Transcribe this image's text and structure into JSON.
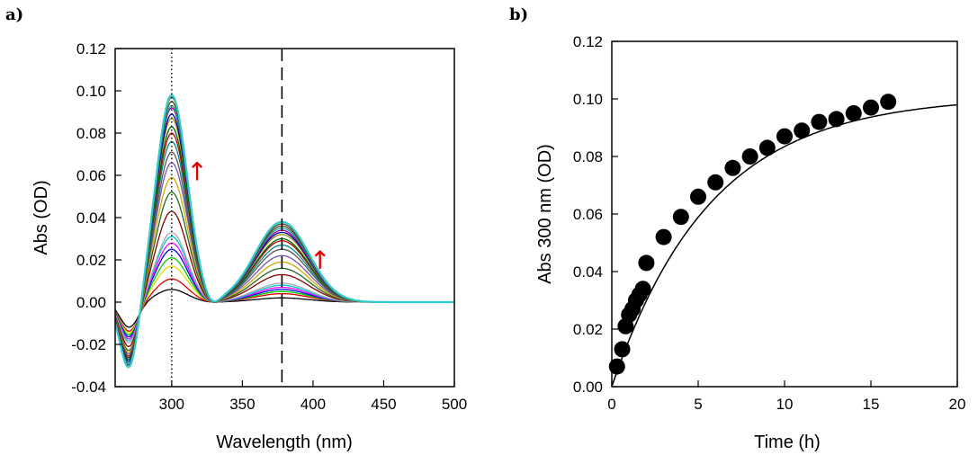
{
  "chart_data": [
    {
      "type": "line",
      "panel_label": "a)",
      "xlabel": "Wavelength (nm)",
      "ylabel": "Abs (OD)",
      "xlim": [
        260,
        500
      ],
      "ylim": [
        -0.04,
        0.12
      ],
      "xticks": [
        "300",
        "350",
        "400",
        "450",
        "500"
      ],
      "yticks": [
        "-0.04",
        "-0.02",
        "0.00",
        "0.02",
        "0.04",
        "0.06",
        "0.08",
        "0.10",
        "0.12"
      ],
      "grid": false,
      "reference_lines": [
        {
          "x": 300,
          "style": "dotted"
        },
        {
          "x": 378,
          "style": "dashed"
        }
      ],
      "annotations": [
        {
          "text": "↑",
          "x": 318,
          "y": 0.062,
          "color": "#e00000"
        },
        {
          "text": "↑",
          "x": 405,
          "y": 0.02,
          "color": "#e00000"
        }
      ],
      "series_colors": [
        "#000000",
        "#dd0000",
        "#dddd00",
        "#00cc00",
        "#0000ee",
        "#ff00ff",
        "#00cccc",
        "#aaaaaa",
        "#880000",
        "#226622",
        "#ccaa00",
        "#7755aa",
        "#555555",
        "#008888",
        "#bb0000",
        "#006600",
        "#999900",
        "#0000aa",
        "#990099",
        "#00aaaa",
        "#664400",
        "#444444",
        "#33cccc"
      ],
      "series_peak300": [
        0.006,
        0.011,
        0.017,
        0.021,
        0.025,
        0.028,
        0.031,
        0.033,
        0.043,
        0.052,
        0.059,
        0.066,
        0.071,
        0.076,
        0.08,
        0.083,
        0.087,
        0.089,
        0.092,
        0.093,
        0.095,
        0.097,
        0.098
      ],
      "series_peak378": [
        0.002,
        0.004,
        0.005,
        0.005,
        0.006,
        0.007,
        0.008,
        0.009,
        0.013,
        0.016,
        0.019,
        0.022,
        0.025,
        0.027,
        0.029,
        0.03,
        0.032,
        0.033,
        0.034,
        0.035,
        0.036,
        0.037,
        0.038
      ],
      "series_min270": [
        -0.012,
        -0.014,
        -0.015,
        -0.016,
        -0.017,
        -0.018,
        -0.019,
        -0.02,
        -0.022,
        -0.024,
        -0.025,
        -0.026,
        -0.027,
        -0.028,
        -0.028,
        -0.029,
        -0.03,
        -0.03,
        -0.031,
        -0.031,
        -0.032,
        -0.032,
        -0.033
      ]
    },
    {
      "type": "scatter",
      "panel_label": "b)",
      "xlabel": "Time (h)",
      "ylabel": "Abs 300 nm (OD)",
      "xlim": [
        0,
        20
      ],
      "ylim": [
        0,
        0.12
      ],
      "xticks": [
        "0",
        "5",
        "10",
        "15",
        "20"
      ],
      "yticks": [
        "0.00",
        "0.02",
        "0.04",
        "0.06",
        "0.08",
        "0.10",
        "0.12"
      ],
      "grid": false,
      "points": {
        "x": [
          0.3,
          0.6,
          0.8,
          1.0,
          1.2,
          1.4,
          1.6,
          1.8,
          2.0,
          3.0,
          4.0,
          5.0,
          6.0,
          7.0,
          8.0,
          9.0,
          10.0,
          11.0,
          12.0,
          13.0,
          14.0,
          15.0,
          16.0
        ],
        "y": [
          0.007,
          0.013,
          0.021,
          0.025,
          0.027,
          0.03,
          0.032,
          0.034,
          0.043,
          0.052,
          0.059,
          0.066,
          0.071,
          0.076,
          0.08,
          0.083,
          0.087,
          0.089,
          0.092,
          0.093,
          0.095,
          0.097,
          0.099
        ]
      },
      "fit": {
        "model": "y = a*(1 - exp(-k*t))",
        "a": 0.101,
        "k": 0.175,
        "color": "#000000"
      }
    }
  ]
}
